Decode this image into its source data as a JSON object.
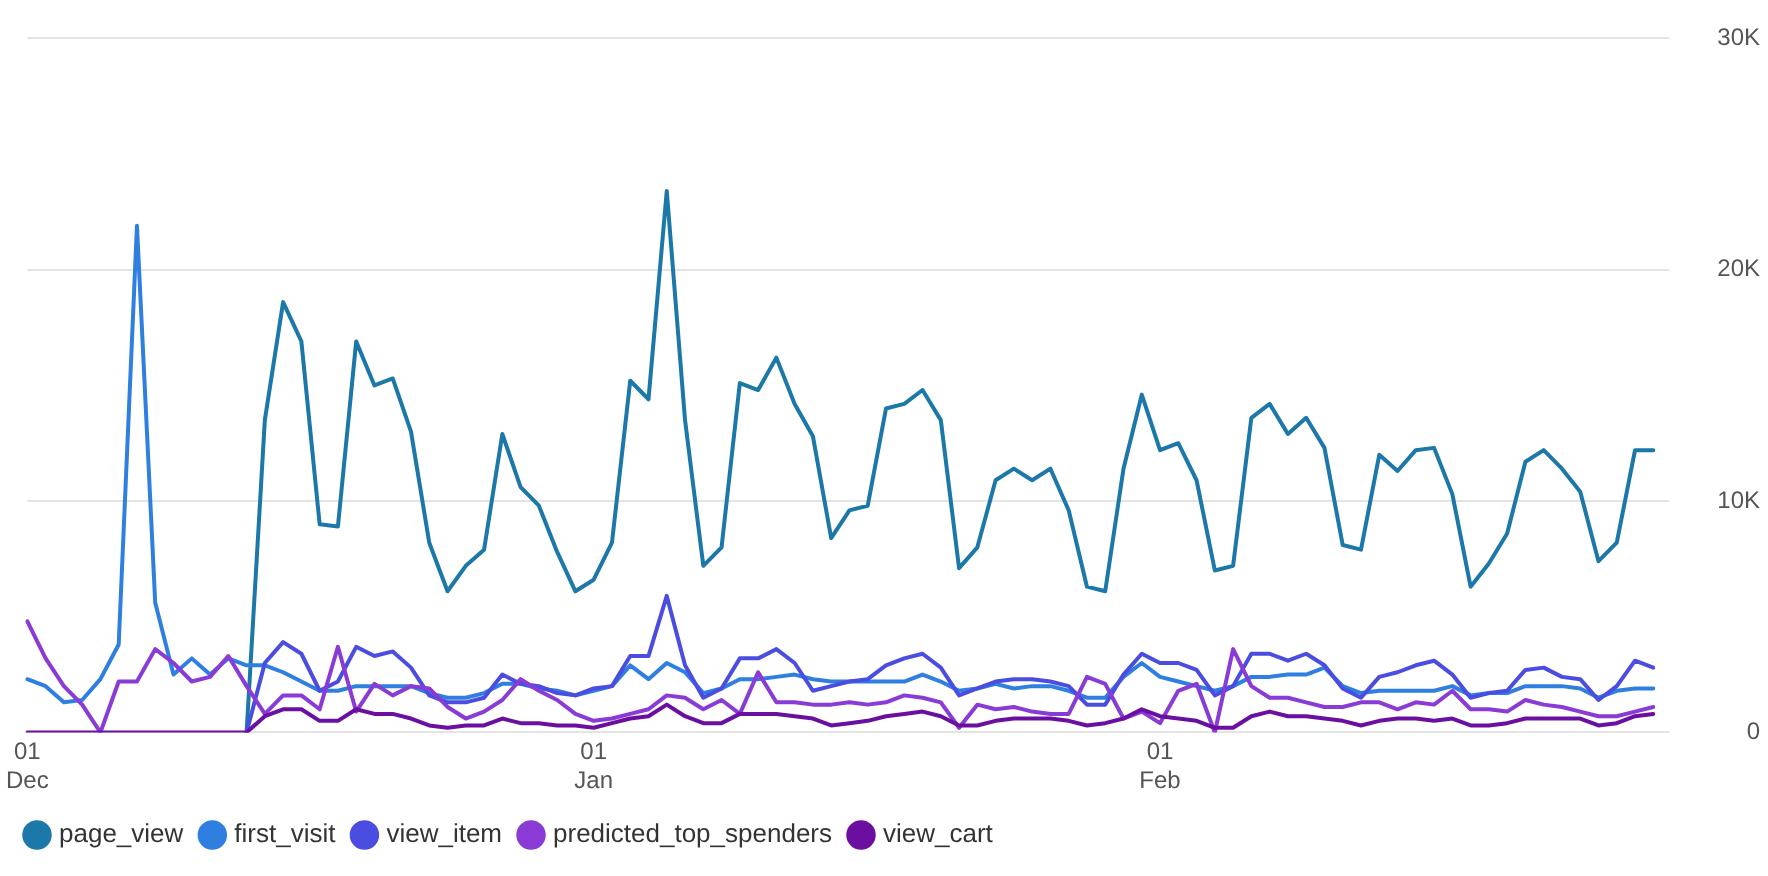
{
  "chart_data": {
    "type": "line",
    "categories": [
      "01\nDec",
      null,
      null,
      null,
      null,
      null,
      null,
      null,
      null,
      null,
      null,
      null,
      null,
      null,
      null,
      null,
      null,
      null,
      null,
      null,
      null,
      null,
      null,
      null,
      null,
      null,
      null,
      null,
      null,
      null,
      null,
      "01\nJan",
      null,
      null,
      null,
      null,
      null,
      null,
      null,
      null,
      null,
      null,
      null,
      null,
      null,
      null,
      null,
      null,
      null,
      null,
      null,
      null,
      null,
      null,
      null,
      null,
      null,
      null,
      null,
      null,
      null,
      null,
      "01\nFeb",
      null,
      null,
      null,
      null,
      null,
      null,
      null,
      null,
      null,
      null,
      null,
      null,
      null,
      null,
      null,
      null,
      null,
      null,
      null,
      null,
      null,
      null,
      null,
      null,
      null,
      null,
      null
    ],
    "series": [
      {
        "name": "page_view",
        "color": "#1b78a8",
        "values": [
          null,
          null,
          null,
          null,
          null,
          null,
          null,
          null,
          null,
          null,
          null,
          null,
          0,
          13500,
          18600,
          16900,
          9000,
          8900,
          16900,
          15000,
          15300,
          13000,
          8200,
          6100,
          7200,
          7900,
          12900,
          10600,
          9800,
          7800,
          6100,
          6600,
          8200,
          15200,
          14400,
          23400,
          13500,
          7200,
          8000,
          15100,
          14800,
          16200,
          14200,
          12800,
          8400,
          9600,
          9800,
          14000,
          14200,
          14800,
          13500,
          7100,
          8000,
          10900,
          11400,
          10900,
          11400,
          9600,
          6300,
          6100,
          11400,
          14600,
          12200,
          12500,
          10900,
          7000,
          7200,
          13600,
          14200,
          12900,
          13600,
          12300,
          8100,
          7900,
          12000,
          11300,
          12200,
          12300,
          10300,
          6300,
          7300,
          8600,
          11700,
          12200,
          11400,
          10400,
          7400,
          8200,
          12200,
          12200
        ]
      },
      {
        "name": "first_visit",
        "color": "#2f7fe0",
        "values": [
          2300,
          2000,
          1300,
          1400,
          2300,
          3800,
          21900,
          5600,
          2500,
          3200,
          2500,
          3200,
          2900,
          2900,
          2600,
          2200,
          1800,
          1800,
          2000,
          2000,
          2000,
          2000,
          1700,
          1500,
          1500,
          1700,
          2100,
          2100,
          1900,
          1800,
          1600,
          1800,
          2000,
          2900,
          2300,
          3000,
          2600,
          1700,
          1900,
          2300,
          2300,
          2400,
          2500,
          2300,
          2200,
          2200,
          2200,
          2200,
          2200,
          2500,
          2200,
          1800,
          1900,
          2100,
          1900,
          2000,
          2000,
          1800,
          1500,
          1500,
          2400,
          3000,
          2400,
          2200,
          2000,
          1800,
          2000,
          2400,
          2400,
          2500,
          2500,
          2800,
          2000,
          1700,
          1800,
          1800,
          1800,
          1800,
          2000,
          1600,
          1700,
          1700,
          2000,
          2000,
          2000,
          1900,
          1500,
          1800,
          1900,
          1900
        ]
      },
      {
        "name": "view_item",
        "color": "#4b4de0",
        "values": [
          null,
          null,
          null,
          null,
          null,
          null,
          null,
          null,
          null,
          null,
          null,
          null,
          0,
          3000,
          3900,
          3400,
          1800,
          2200,
          3700,
          3300,
          3500,
          2800,
          1600,
          1300,
          1300,
          1500,
          2500,
          2100,
          2000,
          1700,
          1600,
          1900,
          2000,
          3300,
          3300,
          5900,
          2900,
          1500,
          1900,
          3200,
          3200,
          3600,
          3000,
          1800,
          2000,
          2200,
          2300,
          2900,
          3200,
          3400,
          2800,
          1600,
          1900,
          2200,
          2300,
          2300,
          2200,
          2000,
          1200,
          1200,
          2500,
          3400,
          3000,
          3000,
          2700,
          1600,
          2000,
          3400,
          3400,
          3100,
          3400,
          2900,
          1900,
          1500,
          2400,
          2600,
          2900,
          3100,
          2500,
          1500,
          1700,
          1800,
          2700,
          2800,
          2400,
          2300,
          1400,
          2000,
          3100,
          2800
        ]
      },
      {
        "name": "predicted_top_spenders",
        "color": "#8a3bd6",
        "values": [
          4800,
          3200,
          2000,
          1200,
          0,
          2200,
          2200,
          3600,
          3000,
          2200,
          2400,
          3300,
          2000,
          800,
          1600,
          1600,
          1000,
          3700,
          900,
          2100,
          1600,
          2000,
          1900,
          1100,
          600,
          900,
          1400,
          2300,
          1800,
          1400,
          800,
          500,
          600,
          800,
          1000,
          1600,
          1500,
          1000,
          1400,
          800,
          2600,
          1300,
          1300,
          1200,
          1200,
          1300,
          1200,
          1300,
          1600,
          1500,
          1300,
          200,
          1200,
          1000,
          1100,
          900,
          800,
          800,
          2400,
          2100,
          600,
          900,
          400,
          1800,
          2100,
          0,
          3600,
          2000,
          1500,
          1500,
          1300,
          1100,
          1100,
          1300,
          1300,
          1000,
          1300,
          1200,
          1800,
          1000,
          1000,
          900,
          1400,
          1200,
          1100,
          900,
          700,
          700,
          900,
          1100
        ]
      },
      {
        "name": "view_cart",
        "color": "#6a0fa0",
        "values": [
          0,
          0,
          0,
          0,
          0,
          0,
          0,
          0,
          0,
          0,
          0,
          0,
          0,
          700,
          1000,
          1000,
          500,
          500,
          1000,
          800,
          800,
          600,
          300,
          200,
          300,
          300,
          600,
          400,
          400,
          300,
          300,
          200,
          400,
          600,
          700,
          1200,
          700,
          400,
          400,
          800,
          800,
          800,
          700,
          600,
          300,
          400,
          500,
          700,
          800,
          900,
          700,
          300,
          300,
          500,
          600,
          600,
          600,
          500,
          300,
          400,
          600,
          1000,
          700,
          600,
          500,
          200,
          200,
          700,
          900,
          700,
          700,
          600,
          500,
          300,
          500,
          600,
          600,
          500,
          600,
          300,
          300,
          400,
          600,
          600,
          600,
          600,
          300,
          400,
          700,
          800
        ]
      }
    ],
    "ylim": [
      0,
      30000
    ],
    "yticks": [
      {
        "value": 0,
        "label": "0"
      },
      {
        "value": 10000,
        "label": "10K"
      },
      {
        "value": 20000,
        "label": "20K"
      },
      {
        "value": 30000,
        "label": "30K"
      }
    ],
    "grid": "y",
    "legend": "bottom left",
    "marker": "none",
    "line_style": "solid"
  }
}
